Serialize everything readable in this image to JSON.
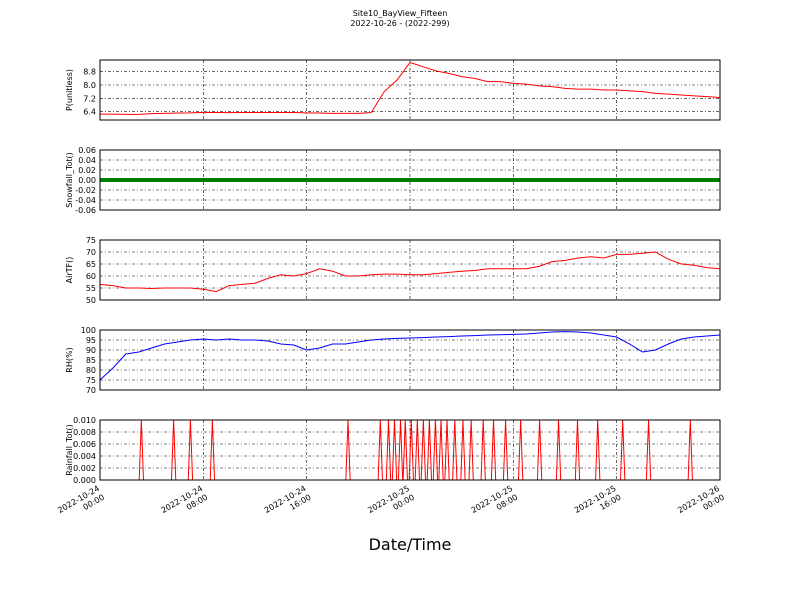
{
  "chart_data": [
    {
      "type": "line",
      "title": "Site10_BayView_Fifteen",
      "subtitle": "2022-10-26 - (2022-299)",
      "y_label": "P(unitless)",
      "color": "#ff0000",
      "x": [
        "2022-10-24 00:00",
        "2022-10-24 01:00",
        "2022-10-24 02:00",
        "2022-10-24 03:00",
        "2022-10-24 04:00",
        "2022-10-24 05:00",
        "2022-10-24 06:00",
        "2022-10-24 07:00",
        "2022-10-24 08:00",
        "2022-10-24 09:00",
        "2022-10-24 10:00",
        "2022-10-24 11:00",
        "2022-10-24 12:00",
        "2022-10-24 13:00",
        "2022-10-24 14:00",
        "2022-10-24 15:00",
        "2022-10-24 16:00",
        "2022-10-24 17:00",
        "2022-10-24 18:00",
        "2022-10-24 19:00",
        "2022-10-24 20:00",
        "2022-10-24 21:00",
        "2022-10-24 22:00",
        "2022-10-24 23:00",
        "2022-10-25 00:00",
        "2022-10-25 01:00",
        "2022-10-25 02:00",
        "2022-10-25 03:00",
        "2022-10-25 04:00",
        "2022-10-25 05:00",
        "2022-10-25 06:00",
        "2022-10-25 07:00",
        "2022-10-25 08:00",
        "2022-10-25 09:00",
        "2022-10-25 10:00",
        "2022-10-25 11:00",
        "2022-10-25 12:00",
        "2022-10-25 13:00",
        "2022-10-25 14:00",
        "2022-10-25 15:00",
        "2022-10-25 16:00",
        "2022-10-25 17:00",
        "2022-10-25 18:00",
        "2022-10-25 19:00",
        "2022-10-25 20:00",
        "2022-10-25 21:00",
        "2022-10-25 22:00",
        "2022-10-25 23:00",
        "2022-10-26 00:00"
      ],
      "values": [
        6.25,
        6.25,
        6.24,
        6.24,
        6.28,
        6.3,
        6.32,
        6.33,
        6.36,
        6.35,
        6.34,
        6.35,
        6.35,
        6.35,
        6.35,
        6.35,
        6.33,
        6.32,
        6.3,
        6.3,
        6.3,
        6.35,
        7.6,
        8.3,
        9.35,
        9.1,
        8.85,
        8.7,
        8.5,
        8.4,
        8.2,
        8.2,
        8.1,
        8.05,
        7.95,
        7.9,
        7.8,
        7.75,
        7.75,
        7.7,
        7.7,
        7.65,
        7.6,
        7.5,
        7.45,
        7.4,
        7.35,
        7.3,
        7.25
      ],
      "xlim": [
        "2022-10-24 00:00",
        "2022-10-26 00:00"
      ],
      "xticks": [
        "2022-10-24 00:00",
        "2022-10-24 08:00",
        "2022-10-24 16:00",
        "2022-10-25 00:00",
        "2022-10-25 08:00",
        "2022-10-25 16:00",
        "2022-10-26 00:00"
      ],
      "ylim": [
        5.9,
        9.5
      ],
      "yticks": [
        6.4,
        7.2,
        {
          "value": 8.0,
          "label": "8.0"
        },
        8.8
      ],
      "grid": true
    },
    {
      "type": "line",
      "y_label": "Snowfall_Tot()",
      "color": "#008000",
      "x": [
        "2022-10-24 00:00",
        "2022-10-24 01:00",
        "2022-10-24 02:00",
        "2022-10-24 03:00",
        "2022-10-24 04:00",
        "2022-10-24 05:00",
        "2022-10-24 06:00",
        "2022-10-24 07:00",
        "2022-10-24 08:00",
        "2022-10-24 09:00",
        "2022-10-24 10:00",
        "2022-10-24 11:00",
        "2022-10-24 12:00",
        "2022-10-24 13:00",
        "2022-10-24 14:00",
        "2022-10-24 15:00",
        "2022-10-24 16:00",
        "2022-10-24 17:00",
        "2022-10-24 18:00",
        "2022-10-24 19:00",
        "2022-10-24 20:00",
        "2022-10-24 21:00",
        "2022-10-24 22:00",
        "2022-10-24 23:00",
        "2022-10-25 00:00",
        "2022-10-25 01:00",
        "2022-10-25 02:00",
        "2022-10-25 03:00",
        "2022-10-25 04:00",
        "2022-10-25 05:00",
        "2022-10-25 06:00",
        "2022-10-25 07:00",
        "2022-10-25 08:00",
        "2022-10-25 09:00",
        "2022-10-25 10:00",
        "2022-10-25 11:00",
        "2022-10-25 12:00",
        "2022-10-25 13:00",
        "2022-10-25 14:00",
        "2022-10-25 15:00",
        "2022-10-25 16:00",
        "2022-10-25 17:00",
        "2022-10-25 18:00",
        "2022-10-25 19:00",
        "2022-10-25 20:00",
        "2022-10-25 21:00",
        "2022-10-25 22:00",
        "2022-10-25 23:00",
        "2022-10-26 00:00"
      ],
      "values": [
        0,
        0,
        0,
        0,
        0,
        0,
        0,
        0,
        0,
        0,
        0,
        0,
        0,
        0,
        0,
        0,
        0,
        0,
        0,
        0,
        0,
        0,
        0,
        0,
        0,
        0,
        0,
        0,
        0,
        0,
        0,
        0,
        0,
        0,
        0,
        0,
        0,
        0,
        0,
        0,
        0,
        0,
        0,
        0,
        0,
        0,
        0,
        0,
        0
      ],
      "xlim": [
        "2022-10-24 00:00",
        "2022-10-26 00:00"
      ],
      "xticks": [
        "2022-10-24 00:00",
        "2022-10-24 08:00",
        "2022-10-24 16:00",
        "2022-10-25 00:00",
        "2022-10-25 08:00",
        "2022-10-25 16:00",
        "2022-10-26 00:00"
      ],
      "ylim": [
        -0.06,
        0.06
      ],
      "yticks": [
        -0.06,
        -0.04,
        -0.02,
        {
          "value": 0,
          "label": "0.00"
        },
        0.02,
        0.04,
        0.06
      ],
      "grid": true
    },
    {
      "type": "line",
      "y_label": "AirTF()",
      "color": "#ff0000",
      "x": [
        "2022-10-24 00:00",
        "2022-10-24 01:00",
        "2022-10-24 02:00",
        "2022-10-24 03:00",
        "2022-10-24 04:00",
        "2022-10-24 05:00",
        "2022-10-24 06:00",
        "2022-10-24 07:00",
        "2022-10-24 08:00",
        "2022-10-24 09:00",
        "2022-10-24 10:00",
        "2022-10-24 11:00",
        "2022-10-24 12:00",
        "2022-10-24 13:00",
        "2022-10-24 14:00",
        "2022-10-24 15:00",
        "2022-10-24 16:00",
        "2022-10-24 17:00",
        "2022-10-24 18:00",
        "2022-10-24 19:00",
        "2022-10-24 20:00",
        "2022-10-24 21:00",
        "2022-10-24 22:00",
        "2022-10-24 23:00",
        "2022-10-25 00:00",
        "2022-10-25 01:00",
        "2022-10-25 02:00",
        "2022-10-25 03:00",
        "2022-10-25 04:00",
        "2022-10-25 05:00",
        "2022-10-25 06:00",
        "2022-10-25 07:00",
        "2022-10-25 08:00",
        "2022-10-25 09:00",
        "2022-10-25 10:00",
        "2022-10-25 11:00",
        "2022-10-25 12:00",
        "2022-10-25 13:00",
        "2022-10-25 14:00",
        "2022-10-25 15:00",
        "2022-10-25 16:00",
        "2022-10-25 17:00",
        "2022-10-25 18:00",
        "2022-10-25 19:00",
        "2022-10-25 20:00",
        "2022-10-25 21:00",
        "2022-10-25 22:00",
        "2022-10-25 23:00",
        "2022-10-26 00:00"
      ],
      "values": [
        56.5,
        56,
        55,
        55,
        54.8,
        55,
        55,
        55,
        54.5,
        53.5,
        56,
        56.5,
        57,
        59,
        60.5,
        60,
        61,
        63,
        62,
        60,
        60,
        60.5,
        60.8,
        60.8,
        60.5,
        60.5,
        61,
        61.5,
        62,
        62.3,
        63,
        63,
        63,
        63,
        64,
        66,
        66.5,
        67.5,
        68,
        67.5,
        69,
        69,
        69.5,
        70,
        67,
        65,
        64.5,
        63.5,
        63
      ],
      "xlim": [
        "2022-10-24 00:00",
        "2022-10-26 00:00"
      ],
      "xticks": [
        "2022-10-24 00:00",
        "2022-10-24 08:00",
        "2022-10-24 16:00",
        "2022-10-25 00:00",
        "2022-10-25 08:00",
        "2022-10-25 16:00",
        "2022-10-26 00:00"
      ],
      "ylim": [
        50,
        75
      ],
      "yticks": [
        50,
        55,
        60,
        65,
        70,
        75
      ],
      "grid": true
    },
    {
      "type": "line",
      "y_label": "RH(%)",
      "color": "#0000ff",
      "x": [
        "2022-10-24 00:00",
        "2022-10-24 01:00",
        "2022-10-24 02:00",
        "2022-10-24 03:00",
        "2022-10-24 04:00",
        "2022-10-24 05:00",
        "2022-10-24 06:00",
        "2022-10-24 07:00",
        "2022-10-24 08:00",
        "2022-10-24 09:00",
        "2022-10-24 10:00",
        "2022-10-24 11:00",
        "2022-10-24 12:00",
        "2022-10-24 13:00",
        "2022-10-24 14:00",
        "2022-10-24 15:00",
        "2022-10-24 16:00",
        "2022-10-24 17:00",
        "2022-10-24 18:00",
        "2022-10-24 19:00",
        "2022-10-24 20:00",
        "2022-10-24 21:00",
        "2022-10-24 22:00",
        "2022-10-24 23:00",
        "2022-10-25 00:00",
        "2022-10-25 01:00",
        "2022-10-25 02:00",
        "2022-10-25 03:00",
        "2022-10-25 04:00",
        "2022-10-25 05:00",
        "2022-10-25 06:00",
        "2022-10-25 07:00",
        "2022-10-25 08:00",
        "2022-10-25 09:00",
        "2022-10-25 10:00",
        "2022-10-25 11:00",
        "2022-10-25 12:00",
        "2022-10-25 13:00",
        "2022-10-25 14:00",
        "2022-10-25 15:00",
        "2022-10-25 16:00",
        "2022-10-25 17:00",
        "2022-10-25 18:00",
        "2022-10-25 19:00",
        "2022-10-25 20:00",
        "2022-10-25 21:00",
        "2022-10-25 22:00",
        "2022-10-25 23:00",
        "2022-10-26 00:00"
      ],
      "values": [
        75,
        81,
        88,
        89,
        91,
        93,
        94,
        95,
        95.5,
        95,
        95.5,
        95,
        95,
        94.5,
        93,
        92.5,
        90,
        91,
        93,
        93,
        94,
        95,
        95.5,
        95.8,
        96,
        96.2,
        96.5,
        96.7,
        97,
        97.2,
        97.5,
        97.6,
        97.8,
        98,
        98.5,
        99,
        99.2,
        99,
        98.5,
        97.5,
        96.5,
        93,
        89,
        90,
        93,
        95.5,
        96.5,
        97,
        97.5
      ],
      "xlim": [
        "2022-10-24 00:00",
        "2022-10-26 00:00"
      ],
      "xticks": [
        "2022-10-24 00:00",
        "2022-10-24 08:00",
        "2022-10-24 16:00",
        "2022-10-25 00:00",
        "2022-10-25 08:00",
        "2022-10-25 16:00",
        "2022-10-26 00:00"
      ],
      "ylim": [
        70,
        100
      ],
      "yticks": [
        70,
        75,
        80,
        85,
        90,
        95,
        100
      ],
      "grid": true
    },
    {
      "type": "line",
      "y_label": "Rainfall_Tot()",
      "x_label": "Date/Time",
      "color": "#ff0000",
      "x": [
        "2022-10-24 00:00",
        "2022-10-24 03:02",
        "2022-10-24 03:12",
        "2022-10-24 03:22",
        "2022-10-24 05:32",
        "2022-10-24 05:42",
        "2022-10-24 05:52",
        "2022-10-24 06:50",
        "2022-10-24 07:00",
        "2022-10-24 07:10",
        "2022-10-24 08:32",
        "2022-10-24 08:42",
        "2022-10-24 08:52",
        "2022-10-24 19:02",
        "2022-10-24 19:12",
        "2022-10-24 19:22",
        "2022-10-24 21:32",
        "2022-10-24 21:42",
        "2022-10-24 21:52",
        "2022-10-24 22:10",
        "2022-10-24 22:20",
        "2022-10-24 22:30",
        "2022-10-24 22:38",
        "2022-10-24 22:48",
        "2022-10-24 22:58",
        "2022-10-24 23:06",
        "2022-10-24 23:16",
        "2022-10-24 23:26",
        "2022-10-24 23:28",
        "2022-10-24 23:38",
        "2022-10-24 23:48",
        "2022-10-24 23:56",
        "2022-10-25 00:06",
        "2022-10-25 00:16",
        "2022-10-25 00:24",
        "2022-10-25 00:34",
        "2022-10-25 00:44",
        "2022-10-25 00:52",
        "2022-10-25 01:02",
        "2022-10-25 01:12",
        "2022-10-25 01:20",
        "2022-10-25 01:30",
        "2022-10-25 01:40",
        "2022-10-25 01:48",
        "2022-10-25 01:58",
        "2022-10-25 02:08",
        "2022-10-25 02:14",
        "2022-10-25 02:24",
        "2022-10-25 02:34",
        "2022-10-25 02:42",
        "2022-10-25 02:52",
        "2022-10-25 03:02",
        "2022-10-25 03:18",
        "2022-10-25 03:28",
        "2022-10-25 03:38",
        "2022-10-25 03:56",
        "2022-10-25 04:06",
        "2022-10-25 04:16",
        "2022-10-25 04:34",
        "2022-10-25 04:44",
        "2022-10-25 04:54",
        "2022-10-25 05:30",
        "2022-10-25 05:40",
        "2022-10-25 05:50",
        "2022-10-25 06:18",
        "2022-10-25 06:28",
        "2022-10-25 06:38",
        "2022-10-25 07:14",
        "2022-10-25 07:24",
        "2022-10-25 07:34",
        "2022-10-25 08:24",
        "2022-10-25 08:34",
        "2022-10-25 08:44",
        "2022-10-25 09:52",
        "2022-10-25 10:02",
        "2022-10-25 10:12",
        "2022-10-25 11:20",
        "2022-10-25 11:30",
        "2022-10-25 11:40",
        "2022-10-25 12:48",
        "2022-10-25 12:58",
        "2022-10-25 13:08",
        "2022-10-25 14:22",
        "2022-10-25 14:32",
        "2022-10-25 14:42",
        "2022-10-25 16:18",
        "2022-10-25 16:28",
        "2022-10-25 16:38",
        "2022-10-25 18:18",
        "2022-10-25 18:28",
        "2022-10-25 18:38",
        "2022-10-25 21:32",
        "2022-10-25 21:42",
        "2022-10-25 21:52",
        "2022-10-26 00:00"
      ],
      "values": [
        0,
        0,
        0.01,
        0,
        0,
        0.01,
        0,
        0,
        0.01,
        0,
        0,
        0.01,
        0,
        0,
        0.01,
        0,
        0,
        0.01,
        0,
        0,
        0.01,
        0,
        0,
        0.01,
        0,
        0,
        0.01,
        0,
        0,
        0.01,
        0,
        0,
        0.01,
        0,
        0,
        0.01,
        0,
        0,
        0.01,
        0,
        0,
        0.01,
        0,
        0,
        0.01,
        0,
        0,
        0.01,
        0,
        0,
        0.01,
        0,
        0,
        0.01,
        0,
        0,
        0.01,
        0,
        0,
        0.01,
        0,
        0,
        0.01,
        0,
        0,
        0.01,
        0,
        0,
        0.01,
        0,
        0,
        0.01,
        0,
        0,
        0.01,
        0,
        0,
        0.01,
        0,
        0,
        0.01,
        0,
        0,
        0.01,
        0,
        0,
        0.01,
        0,
        0,
        0.01,
        0,
        0,
        0.01,
        0,
        0
      ],
      "xlim": [
        "2022-10-24 00:00",
        "2022-10-26 00:00"
      ],
      "xticks": [
        "2022-10-24 00:00",
        "2022-10-24 08:00",
        "2022-10-24 16:00",
        "2022-10-25 00:00",
        "2022-10-25 08:00",
        "2022-10-25 16:00",
        "2022-10-26 00:00"
      ],
      "ylim": [
        0,
        0.01
      ],
      "yticks": [
        {
          "value": 0,
          "label": "0.000"
        },
        {
          "value": 0.002,
          "label": "0.002"
        },
        {
          "value": 0.004,
          "label": "0.004"
        },
        {
          "value": 0.006,
          "label": "0.006"
        },
        {
          "value": 0.008,
          "label": "0.008"
        },
        {
          "value": 0.01,
          "label": "0.010"
        }
      ],
      "grid": true
    }
  ]
}
